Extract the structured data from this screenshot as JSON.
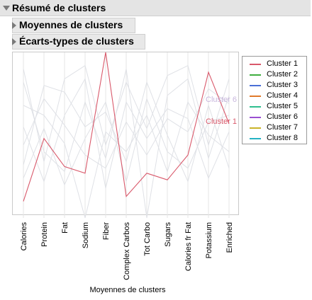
{
  "header": {
    "title": "Résumé de clusters"
  },
  "sections": [
    {
      "title": "Moyennes de clusters"
    },
    {
      "title": "Écarts-types de clusters"
    }
  ],
  "chart_data": {
    "type": "line",
    "xlabel": "Moyennes de clusters",
    "ylabel": "",
    "ylim": [
      0,
      1
    ],
    "categories": [
      "Calories",
      "Protein",
      "Fat",
      "Sodium",
      "Fiber",
      "Complex Carbos",
      "Tot Carbo",
      "Sugars",
      "Calories fr Fat",
      "Potassium",
      "Enriched"
    ],
    "series": [
      {
        "name": "Cluster 1",
        "color": "#d9596b",
        "highlight": true,
        "values": [
          0.1,
          0.48,
          0.31,
          0.27,
          1.0,
          0.13,
          0.27,
          0.23,
          0.38,
          0.88,
          0.57
        ]
      },
      {
        "name": "Cluster 2",
        "color": "#3fae3f",
        "highlight": false,
        "values": [
          0.55,
          0.22,
          0.62,
          0.84,
          0.18,
          0.7,
          0.48,
          0.66,
          0.6,
          0.24,
          0.52
        ]
      },
      {
        "name": "Cluster 3",
        "color": "#4a6fd6",
        "highlight": false,
        "values": [
          0.68,
          0.62,
          0.45,
          0.0,
          0.52,
          0.4,
          0.62,
          0.28,
          0.7,
          0.5,
          0.4
        ]
      },
      {
        "name": "Cluster 4",
        "color": "#e07a2a",
        "highlight": false,
        "values": [
          0.32,
          0.8,
          0.76,
          0.55,
          0.64,
          0.34,
          0.82,
          0.5,
          0.22,
          0.68,
          0.3
        ]
      },
      {
        "name": "Cluster 5",
        "color": "#2fbf8f",
        "highlight": false,
        "values": [
          0.82,
          0.4,
          0.28,
          0.7,
          0.36,
          0.9,
          0.0,
          0.74,
          0.84,
          0.36,
          0.74
        ]
      },
      {
        "name": "Cluster 6",
        "color": "#9b4fd1",
        "highlight": false,
        "values": [
          0.44,
          0.72,
          0.56,
          0.38,
          0.3,
          0.58,
          0.38,
          0.6,
          0.52,
          0.78,
          0.69
        ]
      },
      {
        "name": "Cluster 7",
        "color": "#c9b42a",
        "highlight": false,
        "values": [
          0.24,
          0.54,
          0.2,
          0.48,
          0.7,
          0.22,
          0.72,
          0.4,
          0.3,
          0.58,
          0.62
        ]
      },
      {
        "name": "Cluster 8",
        "color": "#26b3c4",
        "highlight": false,
        "values": [
          0.9,
          0.34,
          0.84,
          0.92,
          0.44,
          0.82,
          0.54,
          0.86,
          0.92,
          0.44,
          0.84
        ]
      }
    ],
    "annotations": [
      {
        "text": "Cluster 6",
        "color": "#c8b6dd"
      },
      {
        "text": "Cluster 1",
        "color": "#d9596b"
      }
    ],
    "legend": "right",
    "grid": false
  }
}
